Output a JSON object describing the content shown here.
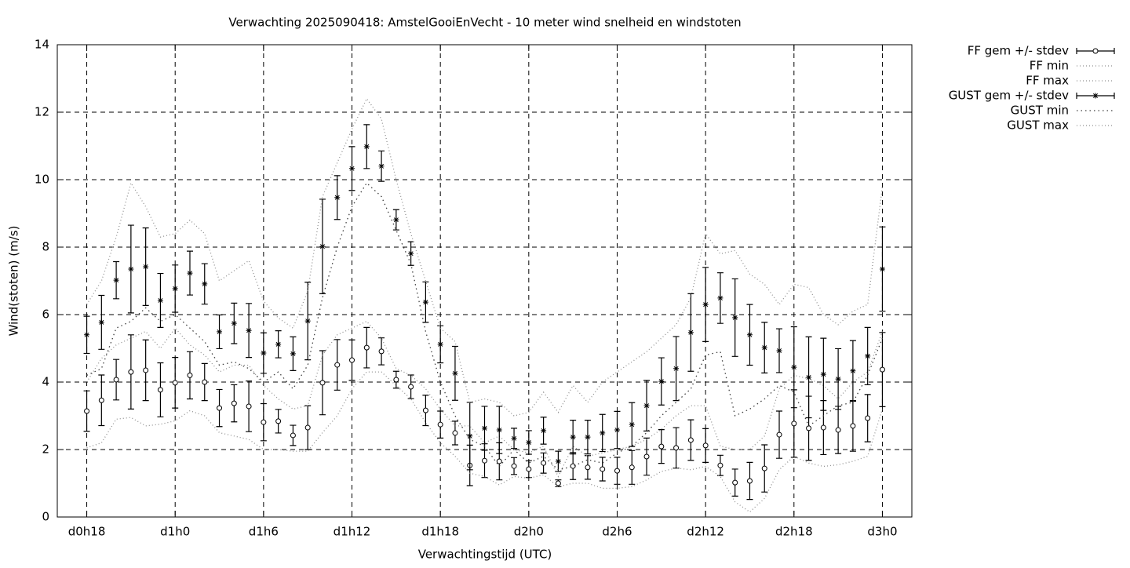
{
  "chart_data": {
    "type": "errorbar-line",
    "title": "Verwachting 2025090418: AmstelGooiEnVecht - 10 meter wind snelheid en windstoten",
    "xlabel": "Verwachtingstijd (UTC)",
    "ylabel": "Wind(stoten) (m/s)",
    "x": [
      18,
      19,
      20,
      21,
      22,
      23,
      24,
      25,
      26,
      27,
      28,
      29,
      30,
      31,
      32,
      33,
      34,
      35,
      36,
      37,
      38,
      39,
      40,
      41,
      42,
      43,
      44,
      45,
      46,
      47,
      48,
      49,
      50,
      51,
      52,
      53,
      54,
      55,
      56,
      57,
      58,
      59,
      60,
      61,
      62,
      63,
      64,
      65,
      66,
      67,
      68,
      69,
      70,
      71,
      72
    ],
    "xlim": [
      16,
      74
    ],
    "xticks": [
      {
        "value": 18,
        "label": "d0h18"
      },
      {
        "value": 24,
        "label": "d1h0"
      },
      {
        "value": 30,
        "label": "d1h6"
      },
      {
        "value": 36,
        "label": "d1h12"
      },
      {
        "value": 42,
        "label": "d1h18"
      },
      {
        "value": 48,
        "label": "d2h0"
      },
      {
        "value": 54,
        "label": "d2h6"
      },
      {
        "value": 60,
        "label": "d2h12"
      },
      {
        "value": 66,
        "label": "d2h18"
      },
      {
        "value": 72,
        "label": "d3h0"
      }
    ],
    "ylim": [
      0,
      14
    ],
    "yticks": [
      0,
      2,
      4,
      6,
      8,
      10,
      12,
      14
    ],
    "grid": true,
    "legend": "outside-top-right",
    "series": [
      {
        "name": "FF gem +/- stdev",
        "style": "errorbars",
        "marker": "circle",
        "color": "#000000",
        "values": [
          3.14,
          3.46,
          4.07,
          4.3,
          4.35,
          3.77,
          3.98,
          4.2,
          4.0,
          3.23,
          3.37,
          3.28,
          2.81,
          2.84,
          2.42,
          2.65,
          3.98,
          4.51,
          4.65,
          5.02,
          4.91,
          4.07,
          3.86,
          3.16,
          2.74,
          2.49,
          1.53,
          1.67,
          1.65,
          1.51,
          1.42,
          1.6,
          1.0,
          1.51,
          1.47,
          1.42,
          1.37,
          1.47,
          1.79,
          2.09,
          2.05,
          2.28,
          2.12,
          1.53,
          1.02,
          1.07,
          1.44,
          2.44,
          2.77,
          2.63,
          2.65,
          2.58,
          2.7,
          2.93,
          4.37
        ],
        "errors": [
          0.6,
          0.75,
          0.6,
          1.1,
          0.9,
          0.8,
          0.75,
          0.7,
          0.55,
          0.55,
          0.55,
          0.75,
          0.55,
          0.35,
          0.3,
          0.65,
          0.95,
          0.75,
          0.6,
          0.6,
          0.4,
          0.25,
          0.35,
          0.45,
          0.4,
          0.35,
          0.6,
          0.5,
          0.55,
          0.25,
          0.25,
          0.3,
          0.1,
          0.4,
          0.35,
          0.35,
          0.4,
          0.5,
          0.55,
          0.5,
          0.6,
          0.6,
          0.5,
          0.3,
          0.4,
          0.55,
          0.7,
          0.7,
          1.0,
          0.95,
          0.8,
          0.7,
          0.75,
          0.7,
          1.1
        ]
      },
      {
        "name": "FF min",
        "style": "dotted",
        "color": "#909090",
        "values": [
          2.05,
          2.2,
          2.9,
          2.95,
          2.7,
          2.75,
          2.85,
          3.15,
          3.0,
          2.5,
          2.4,
          2.3,
          2.0,
          2.0,
          1.95,
          1.95,
          2.5,
          3.0,
          3.8,
          4.3,
          4.3,
          3.9,
          3.5,
          2.8,
          2.2,
          1.8,
          1.3,
          1.2,
          0.95,
          1.2,
          1.15,
          1.25,
          0.9,
          1.0,
          1.0,
          0.85,
          0.85,
          0.9,
          1.1,
          1.35,
          1.45,
          1.4,
          1.5,
          1.2,
          0.45,
          0.15,
          0.55,
          1.4,
          1.8,
          1.6,
          1.5,
          1.55,
          1.65,
          1.8,
          3.2
        ]
      },
      {
        "name": "FF max",
        "style": "dotted",
        "color": "#909090",
        "values": [
          4.0,
          4.7,
          5.1,
          5.3,
          5.5,
          5.0,
          5.6,
          5.1,
          4.8,
          4.3,
          4.5,
          4.5,
          3.9,
          3.5,
          3.2,
          3.3,
          4.8,
          5.4,
          5.6,
          5.8,
          5.3,
          4.4,
          4.2,
          3.8,
          3.2,
          2.7,
          2.7,
          2.2,
          2.4,
          2.0,
          1.9,
          2.1,
          1.2,
          2.1,
          1.8,
          1.9,
          2.0,
          2.1,
          2.3,
          2.6,
          3.0,
          3.3,
          3.3,
          2.1,
          2.0,
          2.0,
          2.4,
          3.8,
          4.2,
          4.1,
          3.9,
          3.5,
          4.0,
          4.3,
          5.5
        ]
      },
      {
        "name": "GUST gem +/- stdev",
        "style": "errorbars",
        "marker": "star",
        "color": "#000000",
        "values": [
          5.4,
          5.77,
          7.02,
          7.35,
          7.42,
          6.42,
          6.77,
          7.23,
          6.91,
          5.49,
          5.74,
          5.53,
          4.86,
          5.12,
          4.84,
          5.81,
          8.02,
          9.47,
          10.33,
          10.98,
          10.4,
          8.81,
          7.81,
          6.37,
          5.12,
          4.26,
          2.4,
          2.63,
          2.58,
          2.33,
          2.21,
          2.56,
          1.65,
          2.37,
          2.37,
          2.49,
          2.58,
          2.74,
          3.3,
          4.02,
          4.4,
          5.47,
          6.3,
          6.49,
          5.91,
          5.4,
          5.02,
          4.93,
          4.44,
          4.14,
          4.23,
          4.09,
          4.33,
          4.77,
          7.35
        ],
        "errors": [
          0.55,
          0.8,
          0.55,
          1.3,
          1.15,
          0.8,
          0.7,
          0.65,
          0.6,
          0.5,
          0.6,
          0.8,
          0.6,
          0.4,
          0.5,
          1.15,
          1.4,
          0.65,
          0.65,
          0.65,
          0.45,
          0.3,
          0.35,
          0.6,
          0.55,
          0.8,
          1.0,
          0.65,
          0.7,
          0.3,
          0.35,
          0.4,
          0.3,
          0.5,
          0.5,
          0.55,
          0.55,
          0.65,
          0.75,
          0.7,
          0.95,
          1.15,
          1.1,
          0.75,
          1.15,
          0.9,
          0.75,
          0.65,
          1.2,
          1.2,
          1.07,
          0.9,
          0.9,
          0.85,
          1.25
        ]
      },
      {
        "name": "GUST min",
        "style": "dotted-dense",
        "color": "#404040",
        "values": [
          4.2,
          4.4,
          5.6,
          5.8,
          6.2,
          5.8,
          6.0,
          5.6,
          5.2,
          4.5,
          4.6,
          4.4,
          4.0,
          4.3,
          3.8,
          4.5,
          6.5,
          8.0,
          9.2,
          9.9,
          9.5,
          8.5,
          7.5,
          5.5,
          4.0,
          3.0,
          2.3,
          2.1,
          1.5,
          2.0,
          1.6,
          1.8,
          1.4,
          1.5,
          1.7,
          1.6,
          1.9,
          2.1,
          2.5,
          3.0,
          3.4,
          3.8,
          4.8,
          4.9,
          3.0,
          3.2,
          3.5,
          3.9,
          3.7,
          2.7,
          3.0,
          3.3,
          3.4,
          4.2,
          5.3
        ]
      },
      {
        "name": "GUST max",
        "style": "dotted",
        "color": "#909090",
        "values": [
          6.3,
          7.0,
          8.3,
          9.9,
          9.2,
          8.3,
          8.4,
          8.8,
          8.4,
          7.0,
          7.3,
          7.6,
          6.4,
          5.9,
          5.6,
          6.7,
          9.5,
          10.5,
          11.5,
          12.4,
          11.8,
          10.0,
          8.4,
          7.0,
          5.6,
          5.2,
          3.4,
          3.5,
          3.4,
          3.0,
          3.1,
          3.7,
          3.1,
          3.9,
          3.4,
          4.0,
          4.3,
          4.6,
          4.9,
          5.3,
          5.7,
          6.5,
          8.4,
          7.8,
          7.9,
          7.2,
          6.9,
          6.3,
          6.9,
          6.8,
          6.0,
          5.7,
          6.1,
          6.3,
          9.8
        ]
      }
    ]
  }
}
